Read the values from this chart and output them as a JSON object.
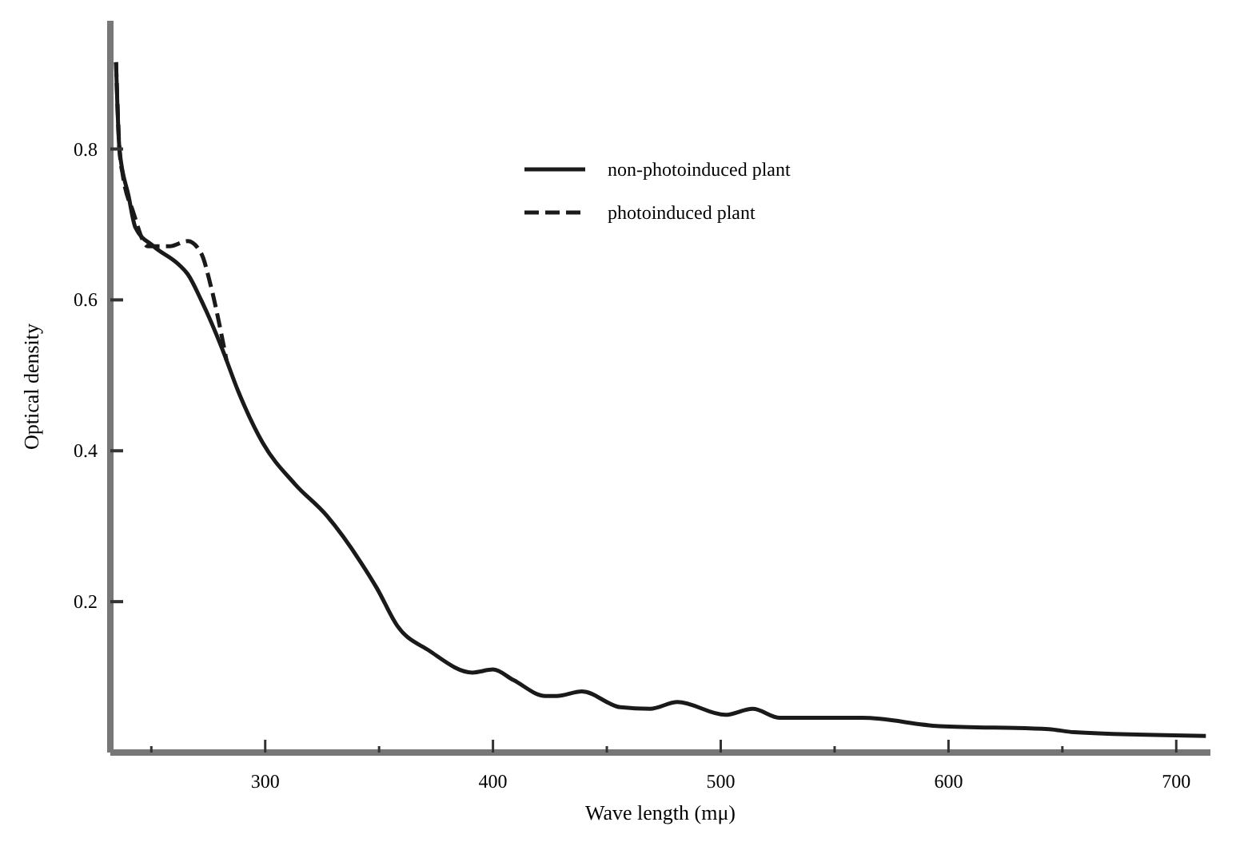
{
  "chart_data": {
    "type": "line",
    "xlabel": "Wave length (mμ)",
    "ylabel": "Optical density",
    "xlim": [
      232,
      715
    ],
    "ylim": [
      0,
      0.97
    ],
    "xticks": [
      {
        "value": 250,
        "label": null
      },
      300,
      {
        "value": 350,
        "label": null
      },
      400,
      {
        "value": 450,
        "label": null
      },
      500,
      {
        "value": 550,
        "label": null
      },
      600,
      {
        "value": 650,
        "label": null
      },
      700
    ],
    "yticks": [
      0.2,
      0.4,
      0.6,
      0.8
    ],
    "grid": false,
    "legend": "top",
    "series": [
      {
        "name": "non-photoinduced plant",
        "color": "#1a1a1a",
        "line_style": "solid",
        "x": [
          234.5,
          236,
          240,
          243,
          251,
          262,
          266,
          272,
          281,
          288,
          299,
          313,
          327,
          342,
          349,
          358,
          372,
          391,
          400,
          409,
          423,
          428,
          439,
          456,
          469,
          481,
          502,
          514,
          526,
          562,
          596,
          644,
          655,
          713
        ],
        "values": [
          0.915,
          0.8,
          0.738,
          0.696,
          0.671,
          0.647,
          0.634,
          0.599,
          0.536,
          0.48,
          0.41,
          0.356,
          0.314,
          0.252,
          0.218,
          0.168,
          0.135,
          0.106,
          0.11,
          0.096,
          0.075,
          0.075,
          0.081,
          0.06,
          0.058,
          0.067,
          0.05,
          0.058,
          0.046,
          0.046,
          0.035,
          0.031,
          0.027,
          0.022
        ]
      },
      {
        "name": "photoinduced plant",
        "color": "#1a1a1a",
        "line_style": "dashed",
        "x": [
          234.5,
          236,
          237.5,
          242,
          248.5,
          258,
          266,
          272,
          276,
          281,
          283
        ],
        "values": [
          0.915,
          0.8,
          0.765,
          0.717,
          0.671,
          0.671,
          0.678,
          0.661,
          0.62,
          0.551,
          0.52
        ]
      }
    ]
  }
}
